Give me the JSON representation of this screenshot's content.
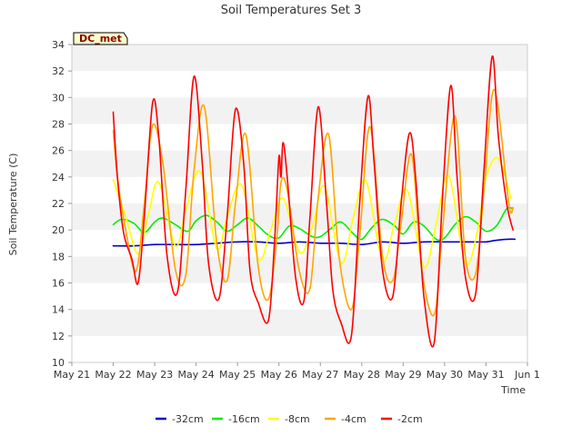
{
  "chart_data": {
    "type": "line",
    "title": "Soil Temperatures Set 3",
    "xlabel": "Time",
    "ylabel": "Soil Temperature (C)",
    "badge": "DC_met",
    "ylim": [
      10,
      34
    ],
    "yticks": [
      10,
      12,
      14,
      16,
      18,
      20,
      22,
      24,
      26,
      28,
      30,
      32,
      34
    ],
    "xlim": [
      0,
      11
    ],
    "xticks": [
      {
        "v": 0,
        "label": "May 21"
      },
      {
        "v": 1,
        "label": "May 22"
      },
      {
        "v": 2,
        "label": "May 23"
      },
      {
        "v": 3,
        "label": "May 24"
      },
      {
        "v": 4,
        "label": "May 25"
      },
      {
        "v": 5,
        "label": "May 26"
      },
      {
        "v": 6,
        "label": "May 27"
      },
      {
        "v": 7,
        "label": "May 28"
      },
      {
        "v": 8,
        "label": "May 29"
      },
      {
        "v": 9,
        "label": "May 30"
      },
      {
        "v": 10,
        "label": "May 31"
      },
      {
        "v": 11,
        "label": "Jun 1"
      }
    ],
    "grid": true,
    "legend_position": "bottom",
    "series": [
      {
        "name": "-32cm",
        "color": "#0000cc",
        "x": [
          1.0,
          1.5,
          2.0,
          2.5,
          3.0,
          3.5,
          4.0,
          4.5,
          5.0,
          5.5,
          6.0,
          6.5,
          7.0,
          7.5,
          8.0,
          8.5,
          9.0,
          9.5,
          10.0,
          10.2,
          10.5,
          10.7
        ],
        "y": [
          18.8,
          18.8,
          18.9,
          18.9,
          18.9,
          19.0,
          19.1,
          19.1,
          19.0,
          19.1,
          19.0,
          19.0,
          18.9,
          19.1,
          19.0,
          19.1,
          19.1,
          19.1,
          19.1,
          19.2,
          19.3,
          19.3
        ]
      },
      {
        "name": "-16cm",
        "color": "#00ee00",
        "x": [
          1.0,
          1.2,
          1.5,
          1.75,
          2.0,
          2.2,
          2.5,
          2.8,
          3.0,
          3.25,
          3.5,
          3.75,
          4.0,
          4.25,
          4.5,
          4.75,
          5.0,
          5.25,
          5.5,
          5.8,
          6.0,
          6.25,
          6.5,
          6.8,
          7.0,
          7.25,
          7.5,
          7.8,
          8.0,
          8.25,
          8.5,
          8.8,
          9.0,
          9.25,
          9.5,
          9.75,
          10.0,
          10.25,
          10.5,
          10.65
        ],
        "y": [
          20.4,
          20.8,
          20.5,
          19.8,
          20.6,
          20.9,
          20.4,
          19.9,
          20.7,
          21.1,
          20.6,
          19.9,
          20.4,
          20.9,
          20.3,
          19.6,
          19.4,
          20.3,
          20.1,
          19.5,
          19.5,
          20.1,
          20.6,
          19.7,
          19.3,
          20.2,
          20.8,
          20.3,
          19.7,
          20.6,
          20.3,
          19.3,
          19.4,
          20.4,
          21.0,
          20.6,
          19.9,
          20.3,
          21.6,
          21.6
        ]
      },
      {
        "name": "-8cm",
        "color": "#ffff00",
        "x": [
          1.0,
          1.3,
          1.6,
          1.85,
          2.1,
          2.5,
          2.75,
          3.1,
          3.5,
          3.75,
          4.1,
          4.5,
          4.8,
          5.1,
          5.5,
          5.8,
          6.1,
          6.5,
          6.8,
          7.1,
          7.5,
          7.8,
          8.1,
          8.5,
          8.8,
          9.1,
          9.5,
          9.8,
          10.0,
          10.3,
          10.6
        ],
        "y": [
          23.8,
          21.0,
          18.2,
          21.2,
          23.6,
          18.8,
          21.5,
          24.4,
          18.6,
          21.0,
          23.4,
          17.8,
          20.0,
          22.4,
          18.3,
          20.2,
          23.3,
          17.5,
          21.0,
          23.7,
          17.7,
          20.6,
          23.0,
          17.2,
          20.5,
          24.1,
          17.5,
          20.0,
          24.0,
          25.4,
          22.4
        ]
      },
      {
        "name": "-4cm",
        "color": "#ffa500",
        "x": [
          1.0,
          1.1,
          1.3,
          1.55,
          1.75,
          1.95,
          2.2,
          2.5,
          2.75,
          2.95,
          3.2,
          3.5,
          3.75,
          3.95,
          4.2,
          4.5,
          4.75,
          4.95,
          5.05,
          5.2,
          5.5,
          5.75,
          5.95,
          6.2,
          6.45,
          6.75,
          6.95,
          7.2,
          7.5,
          7.75,
          7.95,
          8.2,
          8.45,
          8.75,
          8.95,
          9.25,
          9.5,
          9.75,
          9.95,
          10.2,
          10.55,
          10.65
        ],
        "y": [
          27.5,
          24.0,
          20.0,
          16.9,
          22.0,
          27.9,
          25.0,
          17.0,
          16.6,
          24.5,
          29.3,
          19.0,
          16.2,
          22.0,
          27.2,
          17.2,
          14.8,
          19.5,
          23.6,
          23.0,
          16.8,
          15.6,
          22.5,
          27.2,
          18.0,
          14.0,
          19.5,
          27.8,
          18.0,
          16.2,
          20.5,
          25.7,
          17.0,
          13.6,
          20.0,
          28.6,
          18.0,
          16.7,
          23.0,
          30.6,
          22.0,
          21.7
        ]
      },
      {
        "name": "-2cm",
        "color": "#ff0000",
        "x": [
          1.0,
          1.1,
          1.25,
          1.45,
          1.6,
          1.75,
          1.95,
          2.1,
          2.3,
          2.55,
          2.75,
          2.95,
          3.15,
          3.3,
          3.55,
          3.75,
          3.95,
          4.15,
          4.3,
          4.5,
          4.75,
          4.9,
          5.0,
          5.05,
          5.1,
          5.2,
          5.4,
          5.6,
          5.75,
          5.95,
          6.15,
          6.3,
          6.5,
          6.75,
          6.95,
          7.15,
          7.3,
          7.5,
          7.75,
          7.95,
          8.15,
          8.3,
          8.5,
          8.75,
          8.95,
          9.15,
          9.3,
          9.5,
          9.75,
          9.95,
          10.15,
          10.3,
          10.5,
          10.65
        ],
        "y": [
          28.9,
          24.0,
          19.8,
          17.8,
          16.0,
          21.0,
          29.6,
          27.0,
          18.0,
          15.3,
          23.0,
          31.6,
          25.0,
          17.5,
          14.8,
          21.0,
          29.1,
          25.0,
          17.0,
          14.5,
          13.2,
          19.5,
          25.5,
          24.0,
          26.6,
          24.0,
          16.5,
          14.6,
          21.0,
          29.3,
          22.0,
          15.5,
          13.0,
          12.0,
          22.0,
          30.1,
          25.0,
          17.0,
          15.0,
          22.0,
          27.3,
          24.0,
          15.0,
          11.5,
          22.5,
          30.9,
          24.0,
          16.5,
          15.2,
          24.5,
          33.1,
          27.0,
          22.0,
          20.0
        ]
      }
    ]
  }
}
